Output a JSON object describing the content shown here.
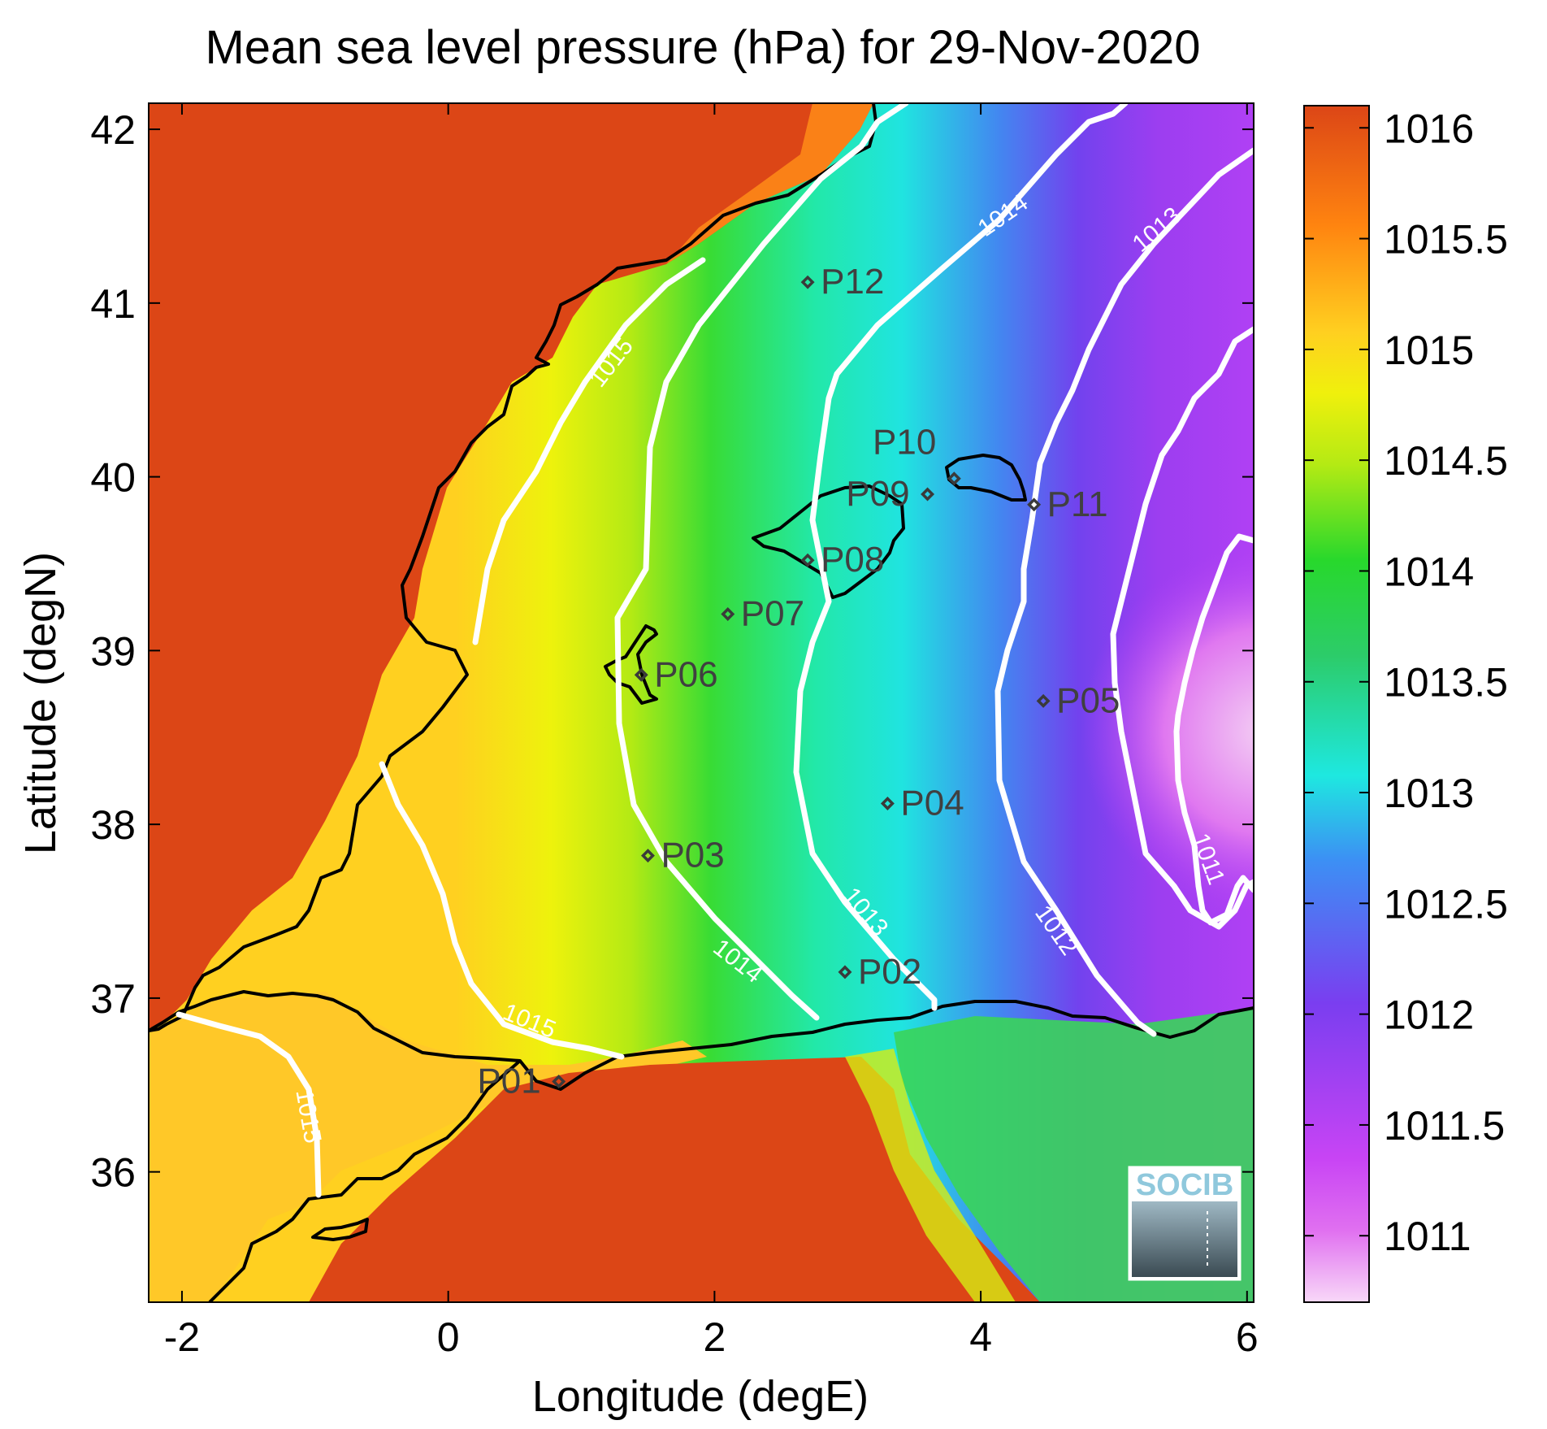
{
  "title": "Mean sea level pressure (hPa) for 29-Nov-2020",
  "xlabel": "Longitude (degE)",
  "ylabel": "Latitude (degN)",
  "x_ticks": [
    "-2",
    "0",
    "2",
    "4",
    "6"
  ],
  "y_ticks": [
    "36",
    "37",
    "38",
    "39",
    "40",
    "41",
    "42"
  ],
  "colorbar": {
    "ticks": [
      "1011",
      "1011.5",
      "1012",
      "1012.5",
      "1013",
      "1013.5",
      "1014",
      "1014.5",
      "1015",
      "1015.5",
      "1016"
    ],
    "range": [
      1010.7,
      1016.1
    ],
    "colors": [
      "#f4ccf4",
      "#cc44f4",
      "#7a3ef0",
      "#3c90f4",
      "#1ee8d8",
      "#2ccc6a",
      "#28d82c",
      "#d4ee10",
      "#ffd020",
      "#ff8410",
      "#dc4616"
    ]
  },
  "contour_labels": [
    "1015",
    "1015",
    "1015",
    "1014",
    "1014",
    "1013",
    "1013",
    "1012",
    "1011"
  ],
  "points": [
    {
      "name": "P01",
      "lon": 0.83,
      "lat": 36.52
    },
    {
      "name": "P02",
      "lon": 2.98,
      "lat": 37.15
    },
    {
      "name": "P03",
      "lon": 1.5,
      "lat": 37.82
    },
    {
      "name": "P04",
      "lon": 3.3,
      "lat": 38.12
    },
    {
      "name": "P05",
      "lon": 4.47,
      "lat": 38.71
    },
    {
      "name": "P06",
      "lon": 1.45,
      "lat": 38.86
    },
    {
      "name": "P07",
      "lon": 2.1,
      "lat": 39.21
    },
    {
      "name": "P08",
      "lon": 2.7,
      "lat": 39.52
    },
    {
      "name": "P09",
      "lon": 3.6,
      "lat": 39.9
    },
    {
      "name": "P10",
      "lon": 3.8,
      "lat": 39.99
    },
    {
      "name": "P11",
      "lon": 4.4,
      "lat": 39.84
    },
    {
      "name": "P12",
      "lon": 2.7,
      "lat": 41.12
    }
  ],
  "logo": {
    "text": "SOCIB"
  },
  "chart_data": {
    "type": "heatmap",
    "title": "Mean sea level pressure (hPa) for 29-Nov-2020",
    "xlabel": "Longitude (degE)",
    "ylabel": "Latitude (degN)",
    "xlim": [
      -2.25,
      6.05
    ],
    "ylim": [
      35.25,
      42.15
    ],
    "colorbar_range": [
      1010.7,
      1016.1
    ],
    "contour_levels": [
      1011,
      1012,
      1013,
      1014,
      1015
    ],
    "colormap": "jet-like with pink low end, red high end"
  }
}
